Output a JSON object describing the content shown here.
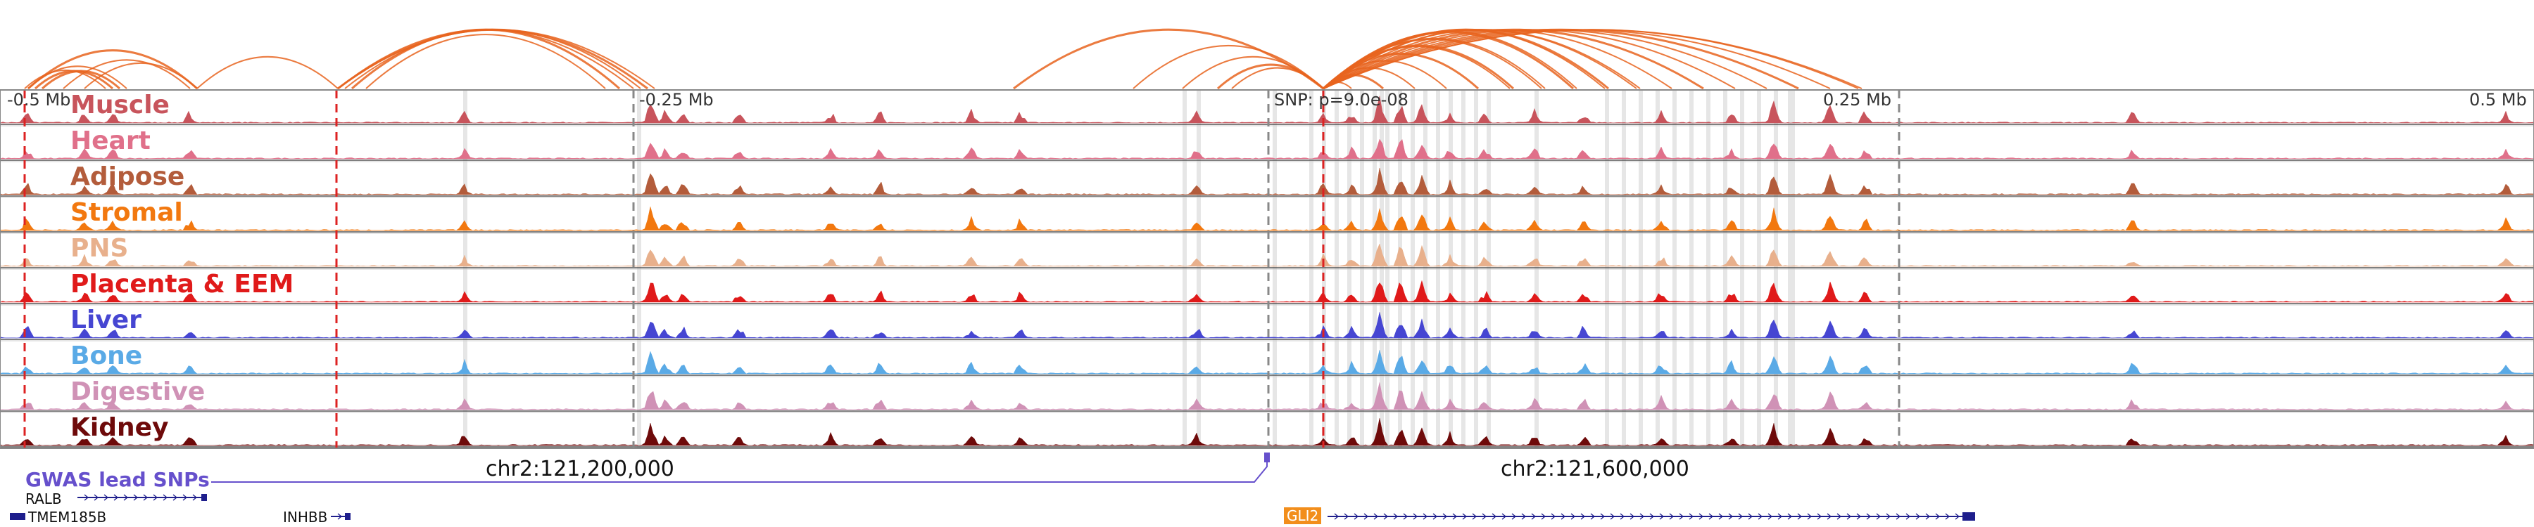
{
  "browser": {
    "ticks": [
      {
        "label": "-0.5 Mb"
      },
      {
        "label": "-0.25 Mb"
      },
      {
        "label": "0.25 Mb"
      },
      {
        "label": "0.5 Mb"
      }
    ],
    "snp_label": "SNP: p=9.0e-08",
    "coordinates": [
      {
        "label": "chr2:121,200,000"
      },
      {
        "label": "chr2:121,600,000"
      }
    ],
    "gwas_label": "GWAS lead SNPs",
    "genes": [
      {
        "name": "RALB"
      },
      {
        "name": "TMEM185B"
      },
      {
        "name": "INHBB"
      },
      {
        "name": "GLI2"
      }
    ]
  },
  "tracks": [
    {
      "label": "Muscle",
      "color": "#c8545c"
    },
    {
      "label": "Heart",
      "color": "#e0708a"
    },
    {
      "label": "Adipose",
      "color": "#b35c3b"
    },
    {
      "label": "Stromal",
      "color": "#f2780f"
    },
    {
      "label": "PNS",
      "color": "#e8b08c"
    },
    {
      "label": "Placenta & EEM",
      "color": "#e01a1a"
    },
    {
      "label": "Liver",
      "color": "#4646d2"
    },
    {
      "label": "Bone",
      "color": "#5aaae6"
    },
    {
      "label": "Digestive",
      "color": "#d092b6"
    },
    {
      "label": "Kidney",
      "color": "#6e0a0a"
    }
  ],
  "colors": {
    "loop": "#e8641e",
    "gwas": "#6650cc",
    "gene": "#1e1e8c"
  }
}
